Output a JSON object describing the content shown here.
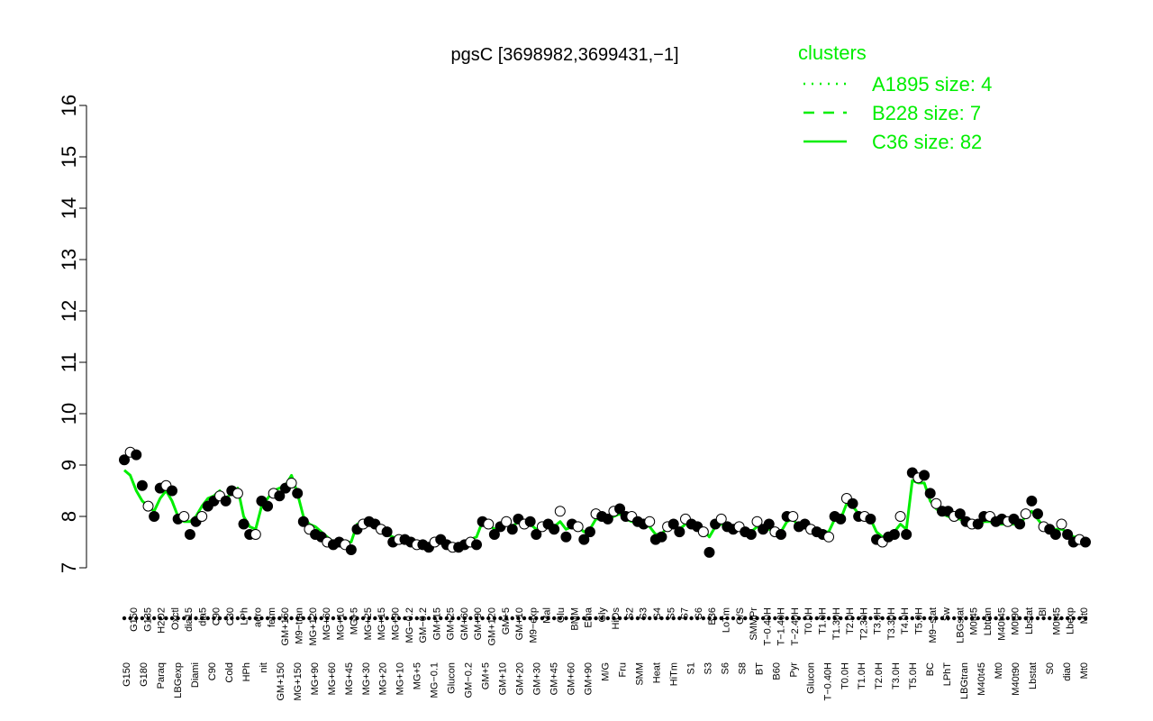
{
  "chart_data": {
    "type": "line",
    "title": "pgsC [3698982,3699431,−1]",
    "xlabel": "",
    "ylabel": "",
    "ylim": [
      7,
      16
    ],
    "yticks": [
      7,
      8,
      9,
      10,
      11,
      12,
      13,
      14,
      15,
      16
    ],
    "grid": false,
    "legend": {
      "placement": "top-right",
      "title": "clusters",
      "entries": [
        {
          "label": "A1895 size: 4",
          "style": "dotted"
        },
        {
          "label": "B228 size: 7",
          "style": "dashed"
        },
        {
          "label": "C36 size: 82",
          "style": "solid"
        }
      ]
    },
    "colors": {
      "line": "#00ee00",
      "legend": "#00ee00",
      "point_filled": "#000000",
      "point_open": "#ffffff"
    },
    "x_labels_top": [
      "G150",
      "G135",
      "H2O2",
      "Oxctl",
      "dia15",
      "dia5",
      "C90",
      "C30",
      "LPh",
      "aero",
      "ferm",
      "GM+150",
      "M9−tran",
      "MG+120",
      "MG+60",
      "MG+10",
      "MG+5",
      "MG+25",
      "MG+15",
      "MG+90",
      "MG−0.2",
      "GM−0.2",
      "GM+15",
      "GM+25",
      "GM+60",
      "GM+90",
      "GM+120",
      "GM+5",
      "GM+10",
      "M9−exp",
      "Mal",
      "Glu",
      "BMM",
      "Etha",
      "Gly",
      "HiOs",
      "S2",
      "S3",
      "S4",
      "S5",
      "S7",
      "S6",
      "B36",
      "LoTm",
      "G/S",
      "SMMPr",
      "T−0.40H",
      "T−1.40H",
      "T−2.40H",
      "T0.0H",
      "T1.0H",
      "T1.30H",
      "T2.0H",
      "T2.30H",
      "T3.0H",
      "T3.30H",
      "T4.0H",
      "T5.0H",
      "M9−stat",
      "Sw",
      "LBGstat",
      "M0t45",
      "Lbtran",
      "M40t45",
      "M0t90",
      "Lbstat",
      "Bl",
      "M0t45",
      "Lbexp",
      "Mt0"
    ],
    "x_labels_bottom": [
      "G150",
      "G180",
      "Paraq",
      "LBGexp",
      "Diami",
      "C90",
      "Cold",
      "HPh",
      "nit",
      "GM+150",
      "MG+150",
      "MG+90",
      "MG+60",
      "MG+45",
      "MG+30",
      "MG+20",
      "MG+10",
      "MG+5",
      "MG−0.1",
      "Glucon",
      "GM−0.2",
      "GM+5",
      "GM+10",
      "GM+20",
      "GM+30",
      "GM+45",
      "GM+60",
      "GM+90",
      "M/G",
      "Fru",
      "SMM",
      "Heat",
      "HiTm",
      "S1",
      "S3",
      "S6",
      "S8",
      "BT",
      "B60",
      "Pyr",
      "Glucon",
      "T−0.40H",
      "T0.0H",
      "T1.0H",
      "T2.0H",
      "T3.0H",
      "T5.0H",
      "BC",
      "LPhT",
      "LBGtran",
      "M40t45",
      "Mt0",
      "M40t90",
      "Lbstat",
      "S0",
      "dia0",
      "Mt0"
    ],
    "n_points": 162,
    "series": [
      {
        "name": "",
        "role": "points",
        "values": [
          9.1,
          9.25,
          9.2,
          8.6,
          8.2,
          8.0,
          8.55,
          8.6,
          8.5,
          7.95,
          8.0,
          7.65,
          7.9,
          8.0,
          8.2,
          8.3,
          8.4,
          8.3,
          8.5,
          8.45,
          7.85,
          7.65,
          7.65,
          8.3,
          8.2,
          8.45,
          8.4,
          8.55,
          8.65,
          8.45,
          7.9,
          7.75,
          7.65,
          7.6,
          7.5,
          7.45,
          7.5,
          7.45,
          7.35,
          7.75,
          7.85,
          7.9,
          7.85,
          7.75,
          7.7,
          7.5,
          7.55,
          7.55,
          7.5,
          7.45,
          7.45,
          7.4,
          7.5,
          7.55,
          7.45,
          7.4,
          7.4,
          7.45,
          7.5,
          7.45,
          7.9,
          7.85,
          7.65,
          7.8,
          7.9,
          7.75,
          7.95,
          7.85,
          7.9,
          7.65,
          7.8,
          7.85,
          7.75,
          8.1,
          7.6,
          7.85,
          7.8,
          7.55,
          7.7,
          8.05,
          8.0,
          7.95,
          8.1,
          8.15,
          8.0,
          8.0,
          7.9,
          7.85,
          7.9,
          7.55,
          7.6,
          7.8,
          7.85,
          7.7,
          7.95,
          7.85,
          7.8,
          7.7,
          7.3,
          7.85,
          7.95,
          7.8,
          7.75,
          7.8,
          7.7,
          7.65,
          7.9,
          7.75,
          7.85,
          7.7,
          7.65,
          8.0,
          8.0,
          7.8,
          7.85,
          7.75,
          7.7,
          7.65,
          7.6,
          8.0,
          7.95,
          8.35,
          8.25,
          8.0,
          8.0,
          7.95,
          7.55,
          7.5,
          7.6,
          7.65,
          8.0,
          7.65,
          8.85,
          8.75,
          8.8,
          8.45,
          8.25,
          8.1,
          8.1,
          8.0,
          8.05,
          7.9,
          7.85,
          7.85,
          8.0,
          8.0,
          7.9,
          7.95,
          7.9,
          7.95,
          7.85,
          8.05,
          8.3,
          8.05,
          7.8,
          7.75,
          7.65,
          7.85,
          7.65,
          7.5,
          7.55,
          7.5
        ]
      },
      {
        "name": "",
        "role": "line",
        "values": [
          8.9,
          8.8,
          8.5,
          8.3,
          8.2,
          8.1,
          8.35,
          8.5,
          8.3,
          8.0,
          7.9,
          7.9,
          8.0,
          8.2,
          8.35,
          8.4,
          8.5,
          8.35,
          8.45,
          8.55,
          8.0,
          7.8,
          7.75,
          8.2,
          8.35,
          8.5,
          8.55,
          8.6,
          8.8,
          8.45,
          8.0,
          7.85,
          7.8,
          7.7,
          7.6,
          7.5,
          7.55,
          7.5,
          7.5,
          7.85,
          7.9,
          7.85,
          7.8,
          7.7,
          7.65,
          7.6,
          7.55,
          7.5,
          7.5,
          7.45,
          7.45,
          7.45,
          7.5,
          7.5,
          7.5,
          7.45,
          7.45,
          7.5,
          7.55,
          7.6,
          7.9,
          7.85,
          7.75,
          7.8,
          7.85,
          7.8,
          7.9,
          7.85,
          7.85,
          7.75,
          7.8,
          7.8,
          7.8,
          7.9,
          7.75,
          7.8,
          7.8,
          7.7,
          7.75,
          7.95,
          7.95,
          7.95,
          8.0,
          8.05,
          7.95,
          7.9,
          7.9,
          7.85,
          7.8,
          7.65,
          7.65,
          7.8,
          7.8,
          7.75,
          7.85,
          7.85,
          7.8,
          7.75,
          7.6,
          7.8,
          7.85,
          7.8,
          7.75,
          7.75,
          7.7,
          7.7,
          7.8,
          7.75,
          7.75,
          7.7,
          7.7,
          7.9,
          7.95,
          7.8,
          7.8,
          7.75,
          7.7,
          7.7,
          7.7,
          7.95,
          7.95,
          8.25,
          8.2,
          8.05,
          8.0,
          7.95,
          7.7,
          7.6,
          7.65,
          7.7,
          7.85,
          7.75,
          8.7,
          8.65,
          8.65,
          8.3,
          8.15,
          8.05,
          8.0,
          7.95,
          7.95,
          7.85,
          7.8,
          7.8,
          7.9,
          7.9,
          7.85,
          7.85,
          7.85,
          7.85,
          7.85,
          8.0,
          8.1,
          7.95,
          7.8,
          7.75,
          7.75,
          7.75,
          7.7,
          7.6,
          7.6,
          7.55
        ]
      }
    ]
  }
}
